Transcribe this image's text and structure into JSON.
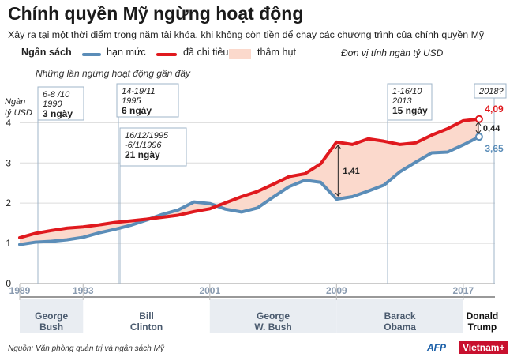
{
  "title": "Chính quyền Mỹ ngừng hoạt động",
  "subtitle": "Xảy ra tại một thời điểm trong năm tài khóa, khi không còn tiền để chạy các chương trình của chính quyền Mỹ",
  "legend": {
    "heading": "Ngân sách",
    "limit": "hạn mức",
    "spending": "đã chi tiêu",
    "deficit": "thâm hụt"
  },
  "unit": "Đơn vị tính ngàn tỷ USD",
  "note": "Những lần ngừng hoạt động gần đây",
  "source": "Nguồn: Văn phòng quản trị và ngân sách Mỹ",
  "logos": {
    "afp": "AFP",
    "vietnam": "Vietnam+"
  },
  "colors": {
    "limit": "#5b8db8",
    "spending": "#e0191e",
    "deficit_fill": "#fbd9cc",
    "annotation": "#222222"
  },
  "chart_data": {
    "type": "line",
    "ylabel": "Ngàn tỷ USD",
    "ylim": [
      0,
      4.4
    ],
    "yticks": [
      0,
      1,
      2,
      3,
      4
    ],
    "xlim": [
      1989,
      2019
    ],
    "xticks": [
      1989,
      1993,
      2001,
      2009,
      2017
    ],
    "grid": true,
    "x": [
      1989,
      1990,
      1991,
      1992,
      1993,
      1994,
      1995,
      1996,
      1997,
      1998,
      1999,
      2000,
      2001,
      2002,
      2003,
      2004,
      2005,
      2006,
      2007,
      2008,
      2009,
      2010,
      2011,
      2012,
      2013,
      2014,
      2015,
      2016,
      2017,
      2018
    ],
    "series": [
      {
        "name": "hạn mức",
        "key": "limit",
        "values": [
          0.97,
          1.03,
          1.05,
          1.09,
          1.15,
          1.26,
          1.35,
          1.45,
          1.58,
          1.72,
          1.83,
          2.03,
          1.99,
          1.85,
          1.78,
          1.88,
          2.15,
          2.41,
          2.57,
          2.52,
          2.1,
          2.16,
          2.3,
          2.45,
          2.78,
          3.02,
          3.25,
          3.27,
          3.45,
          3.65
        ]
      },
      {
        "name": "đã chi tiêu",
        "key": "spending",
        "values": [
          1.14,
          1.25,
          1.32,
          1.38,
          1.41,
          1.46,
          1.52,
          1.56,
          1.6,
          1.65,
          1.7,
          1.79,
          1.86,
          2.01,
          2.16,
          2.29,
          2.47,
          2.66,
          2.73,
          2.98,
          3.52,
          3.46,
          3.6,
          3.54,
          3.46,
          3.5,
          3.69,
          3.85,
          4.05,
          4.09
        ]
      }
    ],
    "annotations": [
      {
        "label": "1,41",
        "x": 2009,
        "from": 2.1,
        "to": 3.52
      },
      {
        "label": "0,44",
        "x": 2018,
        "from": 3.65,
        "to": 4.09
      },
      {
        "label": "4,09",
        "x": 2018,
        "value": 4.09
      },
      {
        "label": "3,65",
        "x": 2018,
        "value": 3.65
      }
    ],
    "shutdowns": [
      {
        "x": 1990,
        "line1": "6-8 /10",
        "line2": "1990",
        "duration": "3 ngày"
      },
      {
        "x": 1995,
        "line1": "14-19/11",
        "line2": "1995",
        "duration": "6 ngày"
      },
      {
        "x": 1996,
        "line1": "16/12/1995",
        "line2": "-6/1/1996",
        "duration": "21 ngày"
      },
      {
        "x": 2013,
        "line1": "1-16/10",
        "line2": "2013",
        "duration": "15 ngày"
      },
      {
        "x": 2018,
        "line1": "2018?",
        "line2": "",
        "duration": ""
      }
    ],
    "presidents": [
      {
        "name": "George\nBush",
        "from": 1989,
        "to": 1993,
        "shaded": true
      },
      {
        "name": "Bill\nClinton",
        "from": 1993,
        "to": 2001,
        "shaded": false
      },
      {
        "name": "George\nW. Bush",
        "from": 2001,
        "to": 2009,
        "shaded": true
      },
      {
        "name": "Barack\nObama",
        "from": 2009,
        "to": 2017,
        "shaded": true
      },
      {
        "name": "Donald\nTrump",
        "from": 2017,
        "to": 2019,
        "shaded": false
      }
    ]
  }
}
